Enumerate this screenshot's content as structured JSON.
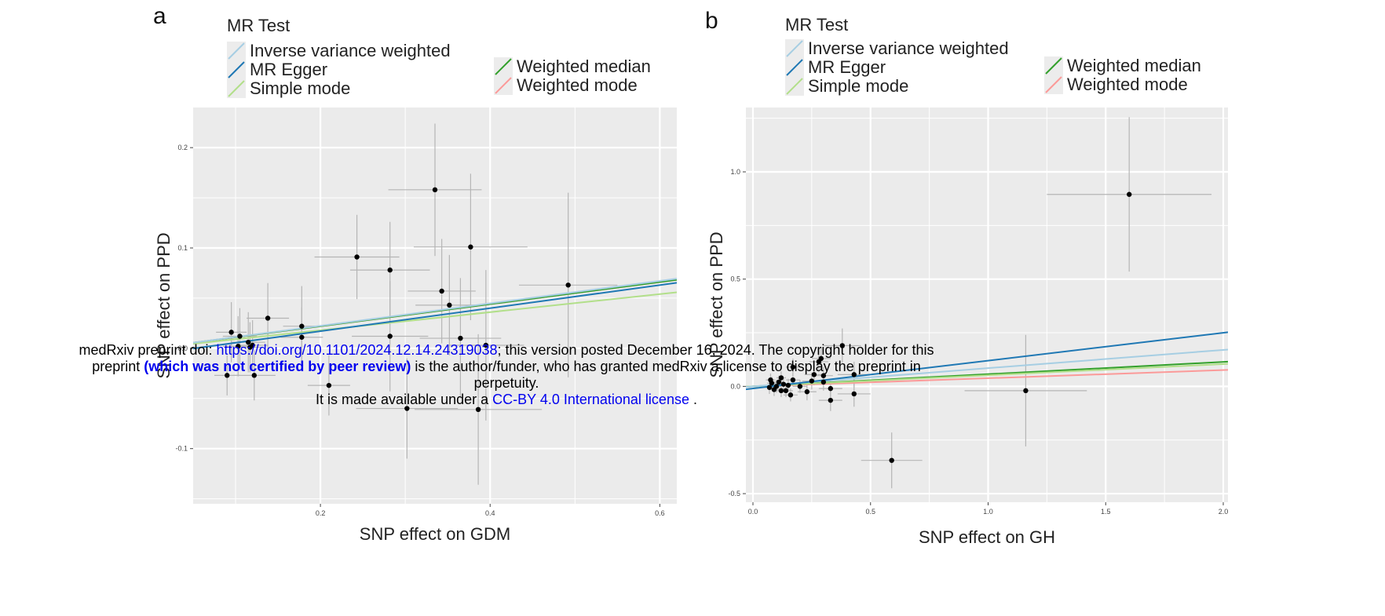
{
  "chart_data": [
    {
      "type": "scatter",
      "panel_label": "a",
      "xlabel": "SNP effect on GDM",
      "ylabel": "SNP effect on PPD",
      "xlim": [
        0.05,
        0.62
      ],
      "ylim": [
        -0.155,
        0.24
      ],
      "x_ticks": [
        0.2,
        0.4,
        0.6
      ],
      "x_tick_labels": [
        "0.2",
        "0.4",
        "0.6"
      ],
      "y_ticks": [
        -0.1,
        0.0,
        0.1,
        0.2
      ],
      "y_tick_labels": [
        "-0.1",
        "0.0",
        "0.1",
        "0.2"
      ],
      "grid": true,
      "legend": {
        "title": "MR Test",
        "placement": "top",
        "entries": [
          "Inverse variance weighted",
          "MR Egger",
          "Simple mode",
          "Weighted median",
          "Weighted mode"
        ]
      },
      "points": [
        {
          "x": 0.335,
          "y": 0.158,
          "xerr": 0.055,
          "yerr": 0.066
        },
        {
          "x": 0.377,
          "y": 0.101,
          "xerr": 0.067,
          "yerr": 0.073
        },
        {
          "x": 0.243,
          "y": 0.091,
          "xerr": 0.05,
          "yerr": 0.042
        },
        {
          "x": 0.282,
          "y": 0.078,
          "xerr": 0.047,
          "yerr": 0.048
        },
        {
          "x": 0.492,
          "y": 0.063,
          "xerr": 0.058,
          "yerr": 0.092
        },
        {
          "x": 0.343,
          "y": 0.057,
          "xerr": 0.04,
          "yerr": 0.052
        },
        {
          "x": 0.352,
          "y": 0.043,
          "xerr": 0.04,
          "yerr": 0.05
        },
        {
          "x": 0.138,
          "y": 0.03,
          "xerr": 0.025,
          "yerr": 0.035
        },
        {
          "x": 0.178,
          "y": 0.022,
          "xerr": 0.022,
          "yerr": 0.04
        },
        {
          "x": 0.095,
          "y": 0.016,
          "xerr": 0.018,
          "yerr": 0.03
        },
        {
          "x": 0.105,
          "y": 0.012,
          "xerr": 0.02,
          "yerr": 0.028
        },
        {
          "x": 0.178,
          "y": 0.011,
          "xerr": 0.025,
          "yerr": 0.03
        },
        {
          "x": 0.282,
          "y": 0.012,
          "xerr": 0.045,
          "yerr": 0.055
        },
        {
          "x": 0.365,
          "y": 0.01,
          "xerr": 0.048,
          "yerr": 0.06
        },
        {
          "x": 0.115,
          "y": 0.006,
          "xerr": 0.02,
          "yerr": 0.03
        },
        {
          "x": 0.12,
          "y": 0.003,
          "xerr": 0.018,
          "yerr": 0.025
        },
        {
          "x": 0.103,
          "y": 0.002,
          "xerr": 0.018,
          "yerr": 0.03
        },
        {
          "x": 0.117,
          "y": 0.001,
          "xerr": 0.016,
          "yerr": 0.025
        },
        {
          "x": 0.395,
          "y": 0.003,
          "xerr": 0.045,
          "yerr": 0.075
        },
        {
          "x": 0.09,
          "y": -0.027,
          "xerr": 0.015,
          "yerr": 0.02
        },
        {
          "x": 0.122,
          "y": -0.027,
          "xerr": 0.025,
          "yerr": 0.025
        },
        {
          "x": 0.21,
          "y": -0.037,
          "xerr": 0.025,
          "yerr": 0.03
        },
        {
          "x": 0.302,
          "y": -0.06,
          "xerr": 0.06,
          "yerr": 0.05
        },
        {
          "x": 0.386,
          "y": -0.061,
          "xerr": 0.075,
          "yerr": 0.075
        }
      ],
      "lines": [
        {
          "name": "Inverse variance weighted",
          "color": "#a6cee3",
          "intercept": 0.0,
          "slope": 0.112
        },
        {
          "name": "MR Egger",
          "color": "#1f78b4",
          "intercept": -0.006,
          "slope": 0.115
        },
        {
          "name": "Simple mode",
          "color": "#b2df8a",
          "intercept": 0.0,
          "slope": 0.09
        },
        {
          "name": "Weighted median",
          "color": "#33a02c",
          "intercept": 0.0,
          "slope": 0.11
        },
        {
          "name": "Weighted mode",
          "color": "#fb9a99",
          "intercept": 0.0,
          "slope": 0.11
        }
      ]
    },
    {
      "type": "scatter",
      "panel_label": "b",
      "xlabel": "SNP effect on GH",
      "ylabel": "SNP effect on PPD",
      "xlim": [
        -0.03,
        2.02
      ],
      "ylim": [
        -0.54,
        1.3
      ],
      "x_ticks": [
        0.0,
        0.5,
        1.0,
        1.5,
        2.0
      ],
      "x_tick_labels": [
        "0.0",
        "0.5",
        "1.0",
        "1.5",
        "2.0"
      ],
      "y_ticks": [
        -0.5,
        0.0,
        0.5,
        1.0
      ],
      "y_tick_labels": [
        "-0.5",
        "0.0",
        "0.5",
        "1.0"
      ],
      "grid": true,
      "legend": {
        "title": "MR Test",
        "placement": "top",
        "entries": [
          "Inverse variance weighted",
          "MR Egger",
          "Simple mode",
          "Weighted median",
          "Weighted mode"
        ]
      },
      "points": [
        {
          "x": 1.6,
          "y": 0.895,
          "xerr": 0.35,
          "yerr": 0.36
        },
        {
          "x": 1.16,
          "y": -0.02,
          "xerr": 0.26,
          "yerr": 0.26
        },
        {
          "x": 0.59,
          "y": -0.345,
          "xerr": 0.13,
          "yerr": 0.13
        },
        {
          "x": 0.38,
          "y": 0.19,
          "xerr": 0.08,
          "yerr": 0.08
        },
        {
          "x": 0.29,
          "y": 0.13,
          "xerr": 0.04,
          "yerr": 0.05
        },
        {
          "x": 0.28,
          "y": 0.115,
          "xerr": 0.04,
          "yerr": 0.05
        },
        {
          "x": 0.17,
          "y": 0.09,
          "xerr": 0.03,
          "yerr": 0.04
        },
        {
          "x": 0.43,
          "y": 0.055,
          "xerr": 0.07,
          "yerr": 0.06
        },
        {
          "x": 0.3,
          "y": 0.05,
          "xerr": 0.04,
          "yerr": 0.04
        },
        {
          "x": 0.26,
          "y": 0.055,
          "xerr": 0.04,
          "yerr": 0.05
        },
        {
          "x": 0.43,
          "y": -0.035,
          "xerr": 0.07,
          "yerr": 0.06
        },
        {
          "x": 0.33,
          "y": -0.065,
          "xerr": 0.05,
          "yerr": 0.05
        },
        {
          "x": 0.33,
          "y": -0.01,
          "xerr": 0.05,
          "yerr": 0.04
        },
        {
          "x": 0.23,
          "y": -0.025,
          "xerr": 0.04,
          "yerr": 0.04
        },
        {
          "x": 0.3,
          "y": 0.02,
          "xerr": 0.04,
          "yerr": 0.04
        },
        {
          "x": 0.25,
          "y": 0.025,
          "xerr": 0.04,
          "yerr": 0.04
        },
        {
          "x": 0.2,
          "y": 0.0,
          "xerr": 0.03,
          "yerr": 0.03
        },
        {
          "x": 0.17,
          "y": 0.03,
          "xerr": 0.03,
          "yerr": 0.03
        },
        {
          "x": 0.16,
          "y": -0.04,
          "xerr": 0.03,
          "yerr": 0.03
        },
        {
          "x": 0.14,
          "y": -0.02,
          "xerr": 0.03,
          "yerr": 0.03
        },
        {
          "x": 0.13,
          "y": 0.01,
          "xerr": 0.02,
          "yerr": 0.03
        },
        {
          "x": 0.12,
          "y": 0.04,
          "xerr": 0.02,
          "yerr": 0.03
        },
        {
          "x": 0.11,
          "y": 0.02,
          "xerr": 0.02,
          "yerr": 0.03
        },
        {
          "x": 0.1,
          "y": 0.0,
          "xerr": 0.02,
          "yerr": 0.03
        },
        {
          "x": 0.09,
          "y": -0.015,
          "xerr": 0.02,
          "yerr": 0.03
        },
        {
          "x": 0.08,
          "y": 0.015,
          "xerr": 0.02,
          "yerr": 0.03
        },
        {
          "x": 0.07,
          "y": -0.005,
          "xerr": 0.02,
          "yerr": 0.03
        },
        {
          "x": 0.075,
          "y": 0.03,
          "xerr": 0.02,
          "yerr": 0.03
        },
        {
          "x": 0.12,
          "y": -0.02,
          "xerr": 0.02,
          "yerr": 0.03
        },
        {
          "x": 0.15,
          "y": 0.005,
          "xerr": 0.02,
          "yerr": 0.03
        }
      ],
      "lines": [
        {
          "name": "Inverse variance weighted",
          "color": "#a6cee3",
          "intercept": 0.0,
          "slope": 0.085
        },
        {
          "name": "MR Egger",
          "color": "#1f78b4",
          "intercept": -0.01,
          "slope": 0.13
        },
        {
          "name": "Simple mode",
          "color": "#b2df8a",
          "intercept": 0.0,
          "slope": 0.052
        },
        {
          "name": "Weighted median",
          "color": "#33a02c",
          "intercept": 0.0,
          "slope": 0.057
        },
        {
          "name": "Weighted mode",
          "color": "#fb9a99",
          "intercept": 0.0,
          "slope": 0.038
        }
      ]
    }
  ],
  "banner": {
    "line1_prefix": "medRxiv preprint doi: ",
    "doi_link": "https://doi.org/10.1101/2024.12.14.24319038",
    "line1_suffix": "; this version posted December 16, 2024. The copyright holder for this",
    "line2_prefix": "preprint ",
    "not_certified": "(which was not certified by peer review)",
    "line2_suffix": " is the author/funder, who has granted medRxiv a license to display the preprint in",
    "line3": "perpetuity.",
    "line4_prefix": "It is made available under a ",
    "license_link": "CC-BY 4.0 International license",
    "line4_suffix": " ."
  }
}
